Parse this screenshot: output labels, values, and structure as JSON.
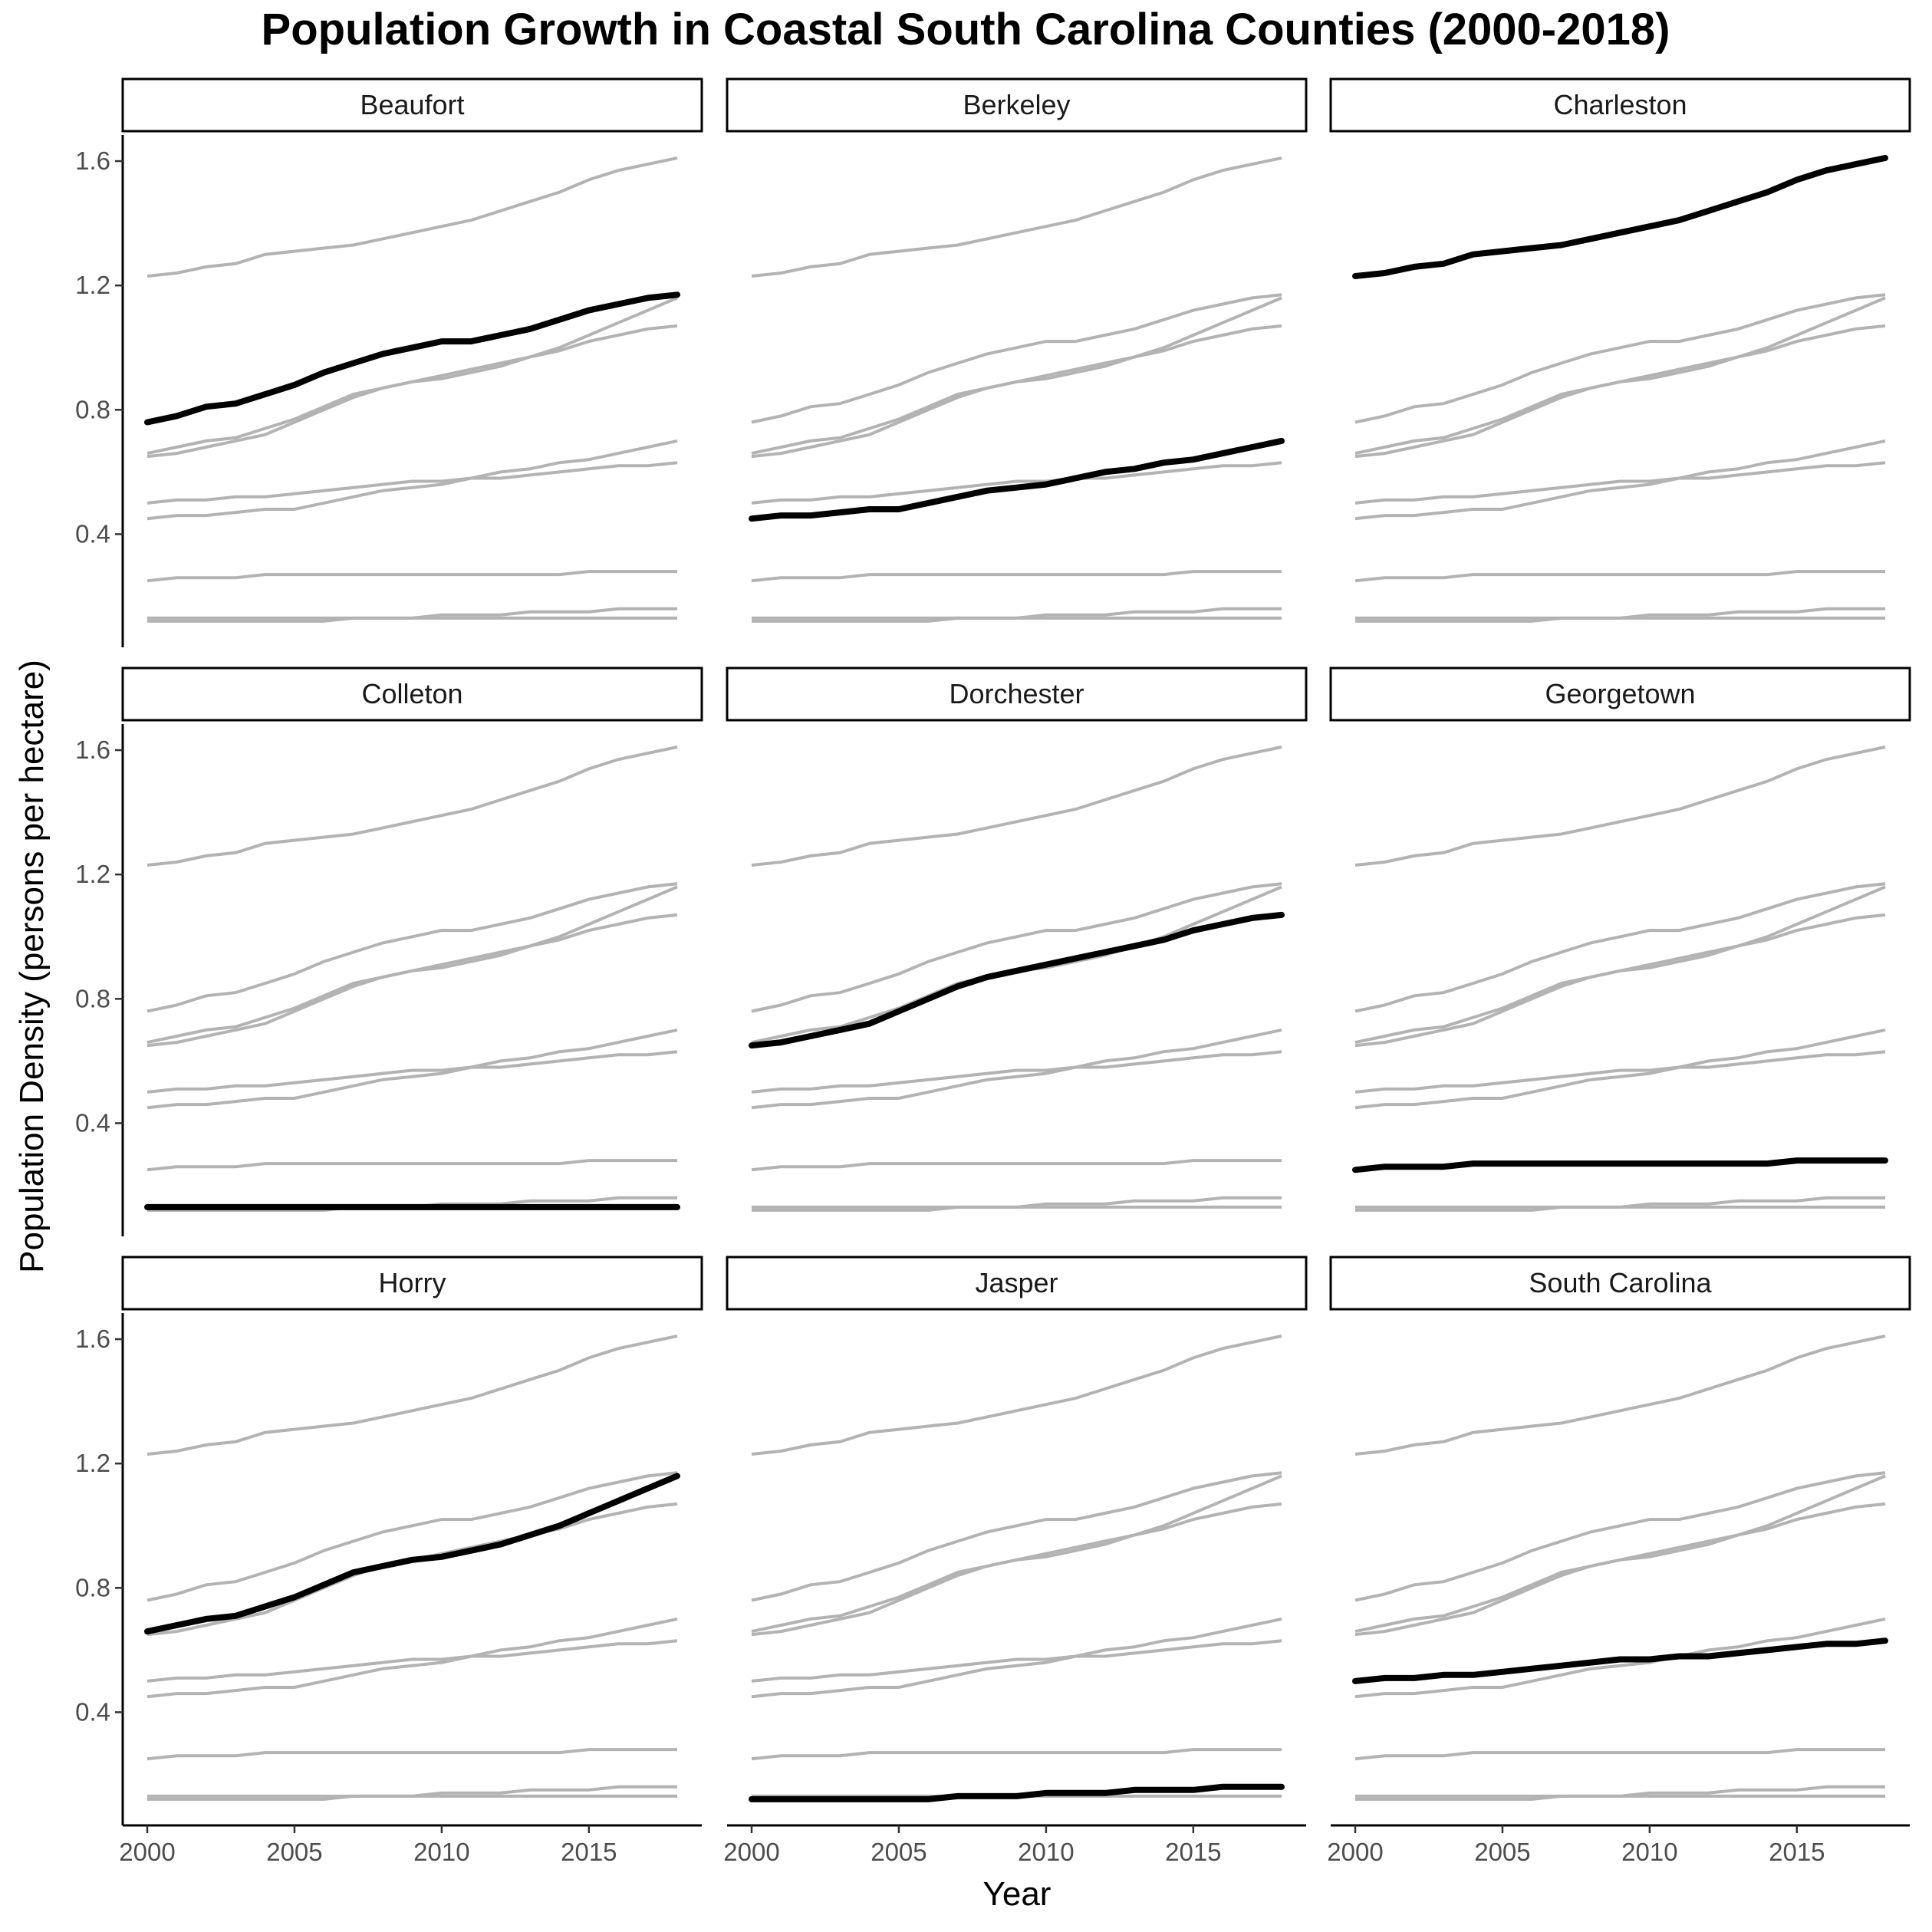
{
  "chart_data": {
    "type": "line",
    "title": "Population Growth in Coastal South Carolina Counties (2000-2018)",
    "xlabel": "Year",
    "ylabel": "Population Density (persons per hectare)",
    "x": [
      2000,
      2001,
      2002,
      2003,
      2004,
      2005,
      2006,
      2007,
      2008,
      2009,
      2010,
      2011,
      2012,
      2013,
      2014,
      2015,
      2016,
      2017,
      2018
    ],
    "xlim": [
      2000,
      2018
    ],
    "ylim": [
      0.11,
      1.61
    ],
    "x_ticks": [
      "2000",
      "2005",
      "2010",
      "2015"
    ],
    "y_ticks": [
      "0.4",
      "0.8",
      "1.2",
      "1.6"
    ],
    "facets": [
      "Beaufort",
      "Berkeley",
      "Charleston",
      "Colleton",
      "Dorchester",
      "Georgetown",
      "Horry",
      "Jasper",
      "South Carolina"
    ],
    "series": [
      {
        "name": "Beaufort",
        "values": [
          0.76,
          0.78,
          0.81,
          0.82,
          0.85,
          0.88,
          0.92,
          0.95,
          0.98,
          1.0,
          1.02,
          1.02,
          1.04,
          1.06,
          1.09,
          1.12,
          1.14,
          1.16,
          1.17
        ]
      },
      {
        "name": "Berkeley",
        "values": [
          0.45,
          0.46,
          0.46,
          0.47,
          0.48,
          0.48,
          0.5,
          0.52,
          0.54,
          0.55,
          0.56,
          0.58,
          0.6,
          0.61,
          0.63,
          0.64,
          0.66,
          0.68,
          0.7
        ]
      },
      {
        "name": "Charleston",
        "values": [
          1.23,
          1.24,
          1.26,
          1.27,
          1.3,
          1.31,
          1.32,
          1.33,
          1.35,
          1.37,
          1.39,
          1.41,
          1.44,
          1.47,
          1.5,
          1.54,
          1.57,
          1.59,
          1.61
        ]
      },
      {
        "name": "Colleton",
        "values": [
          0.13,
          0.13,
          0.13,
          0.13,
          0.13,
          0.13,
          0.13,
          0.13,
          0.13,
          0.13,
          0.13,
          0.13,
          0.13,
          0.13,
          0.13,
          0.13,
          0.13,
          0.13,
          0.13
        ]
      },
      {
        "name": "Dorchester",
        "values": [
          0.65,
          0.66,
          0.68,
          0.7,
          0.72,
          0.76,
          0.8,
          0.84,
          0.87,
          0.89,
          0.91,
          0.93,
          0.95,
          0.97,
          0.99,
          1.02,
          1.04,
          1.06,
          1.07
        ]
      },
      {
        "name": "Georgetown",
        "values": [
          0.25,
          0.26,
          0.26,
          0.26,
          0.27,
          0.27,
          0.27,
          0.27,
          0.27,
          0.27,
          0.27,
          0.27,
          0.27,
          0.27,
          0.27,
          0.28,
          0.28,
          0.28,
          0.28
        ]
      },
      {
        "name": "Horry",
        "values": [
          0.66,
          0.68,
          0.7,
          0.71,
          0.74,
          0.77,
          0.81,
          0.85,
          0.87,
          0.89,
          0.9,
          0.92,
          0.94,
          0.97,
          1.0,
          1.04,
          1.08,
          1.12,
          1.16
        ]
      },
      {
        "name": "Jasper",
        "values": [
          0.12,
          0.12,
          0.12,
          0.12,
          0.12,
          0.12,
          0.12,
          0.13,
          0.13,
          0.13,
          0.14,
          0.14,
          0.14,
          0.15,
          0.15,
          0.15,
          0.16,
          0.16,
          0.16
        ]
      },
      {
        "name": "South Carolina",
        "values": [
          0.5,
          0.51,
          0.51,
          0.52,
          0.52,
          0.53,
          0.54,
          0.55,
          0.56,
          0.57,
          0.57,
          0.58,
          0.58,
          0.59,
          0.6,
          0.61,
          0.62,
          0.62,
          0.63
        ]
      }
    ],
    "colors": {
      "highlight": "#000000",
      "other": "#b3b3b3"
    },
    "grid": false,
    "legend": "none"
  }
}
